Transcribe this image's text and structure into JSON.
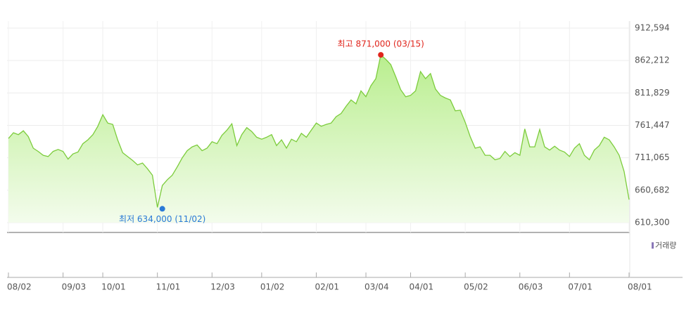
{
  "chart_data": {
    "type": "area",
    "categories": [
      "08/02",
      null,
      null,
      null,
      null,
      null,
      null,
      null,
      null,
      null,
      null,
      "09/03",
      null,
      null,
      null,
      null,
      null,
      null,
      null,
      "10/01",
      null,
      null,
      null,
      null,
      null,
      null,
      null,
      null,
      null,
      null,
      "11/01",
      null,
      null,
      null,
      null,
      null,
      null,
      null,
      null,
      null,
      null,
      "12/03",
      null,
      null,
      null,
      null,
      null,
      null,
      null,
      null,
      null,
      "01/02",
      null,
      null,
      null,
      null,
      null,
      null,
      null,
      null,
      null,
      null,
      "02/01",
      null,
      null,
      null,
      null,
      null,
      null,
      null,
      null,
      null,
      "03/04",
      null,
      null,
      null,
      null,
      null,
      null,
      null,
      null,
      "04/01",
      null,
      null,
      null,
      null,
      null,
      null,
      null,
      null,
      null,
      null,
      "05/02",
      null,
      null,
      null,
      null,
      null,
      null,
      null,
      null,
      null,
      null,
      "06/03",
      null,
      null,
      null,
      null,
      null,
      null,
      null,
      null,
      null,
      "07/01",
      null,
      null,
      null,
      null,
      null,
      null,
      null,
      null,
      null,
      null,
      null,
      "08/01"
    ],
    "values": [
      741000,
      750000,
      747000,
      753000,
      744000,
      726000,
      721000,
      715000,
      713000,
      721000,
      724000,
      721000,
      709000,
      717000,
      720000,
      733000,
      739000,
      747000,
      760000,
      778000,
      765000,
      763000,
      739000,
      719000,
      713000,
      707000,
      700000,
      703000,
      694000,
      684000,
      634000,
      668000,
      677000,
      684000,
      697000,
      711000,
      722000,
      728000,
      731000,
      722000,
      726000,
      736000,
      733000,
      746000,
      754000,
      764000,
      730000,
      747000,
      758000,
      752000,
      743000,
      740000,
      743000,
      747000,
      730000,
      739000,
      726000,
      740000,
      736000,
      749000,
      743000,
      754000,
      765000,
      760000,
      763000,
      765000,
      775000,
      780000,
      791000,
      801000,
      795000,
      815000,
      806000,
      823000,
      834000,
      871000,
      864000,
      856000,
      837000,
      817000,
      806000,
      808000,
      815000,
      845000,
      834000,
      842000,
      818000,
      808000,
      804000,
      801000,
      784000,
      785000,
      766000,
      744000,
      726000,
      728000,
      715000,
      715000,
      708000,
      710000,
      721000,
      713000,
      719000,
      715000,
      756000,
      728000,
      728000,
      755000,
      728000,
      723000,
      729000,
      723000,
      720000,
      713000,
      726000,
      733000,
      715000,
      708000,
      723000,
      730000,
      743000,
      739000,
      728000,
      715000,
      690000,
      646000
    ],
    "color": "#7ccc3c",
    "high_label": "최고 871,000 (03/15)",
    "high_color": "#e0251c",
    "low_label": "최저 634,000 (11/02)",
    "low_color": "#2a7ad6",
    "volume_legend": "거래량",
    "ylim": [
      610300,
      912594
    ],
    "yticks": [
      {
        "value": 610300,
        "label": "610,300"
      },
      {
        "value": 660682,
        "label": "660,682"
      },
      {
        "value": 711065,
        "label": "711,065"
      },
      {
        "value": 761447,
        "label": "761,447"
      },
      {
        "value": 811829,
        "label": "811,829"
      },
      {
        "value": 862212,
        "label": "862,212"
      },
      {
        "value": 912594,
        "label": "912,594"
      }
    ],
    "grid": true
  }
}
